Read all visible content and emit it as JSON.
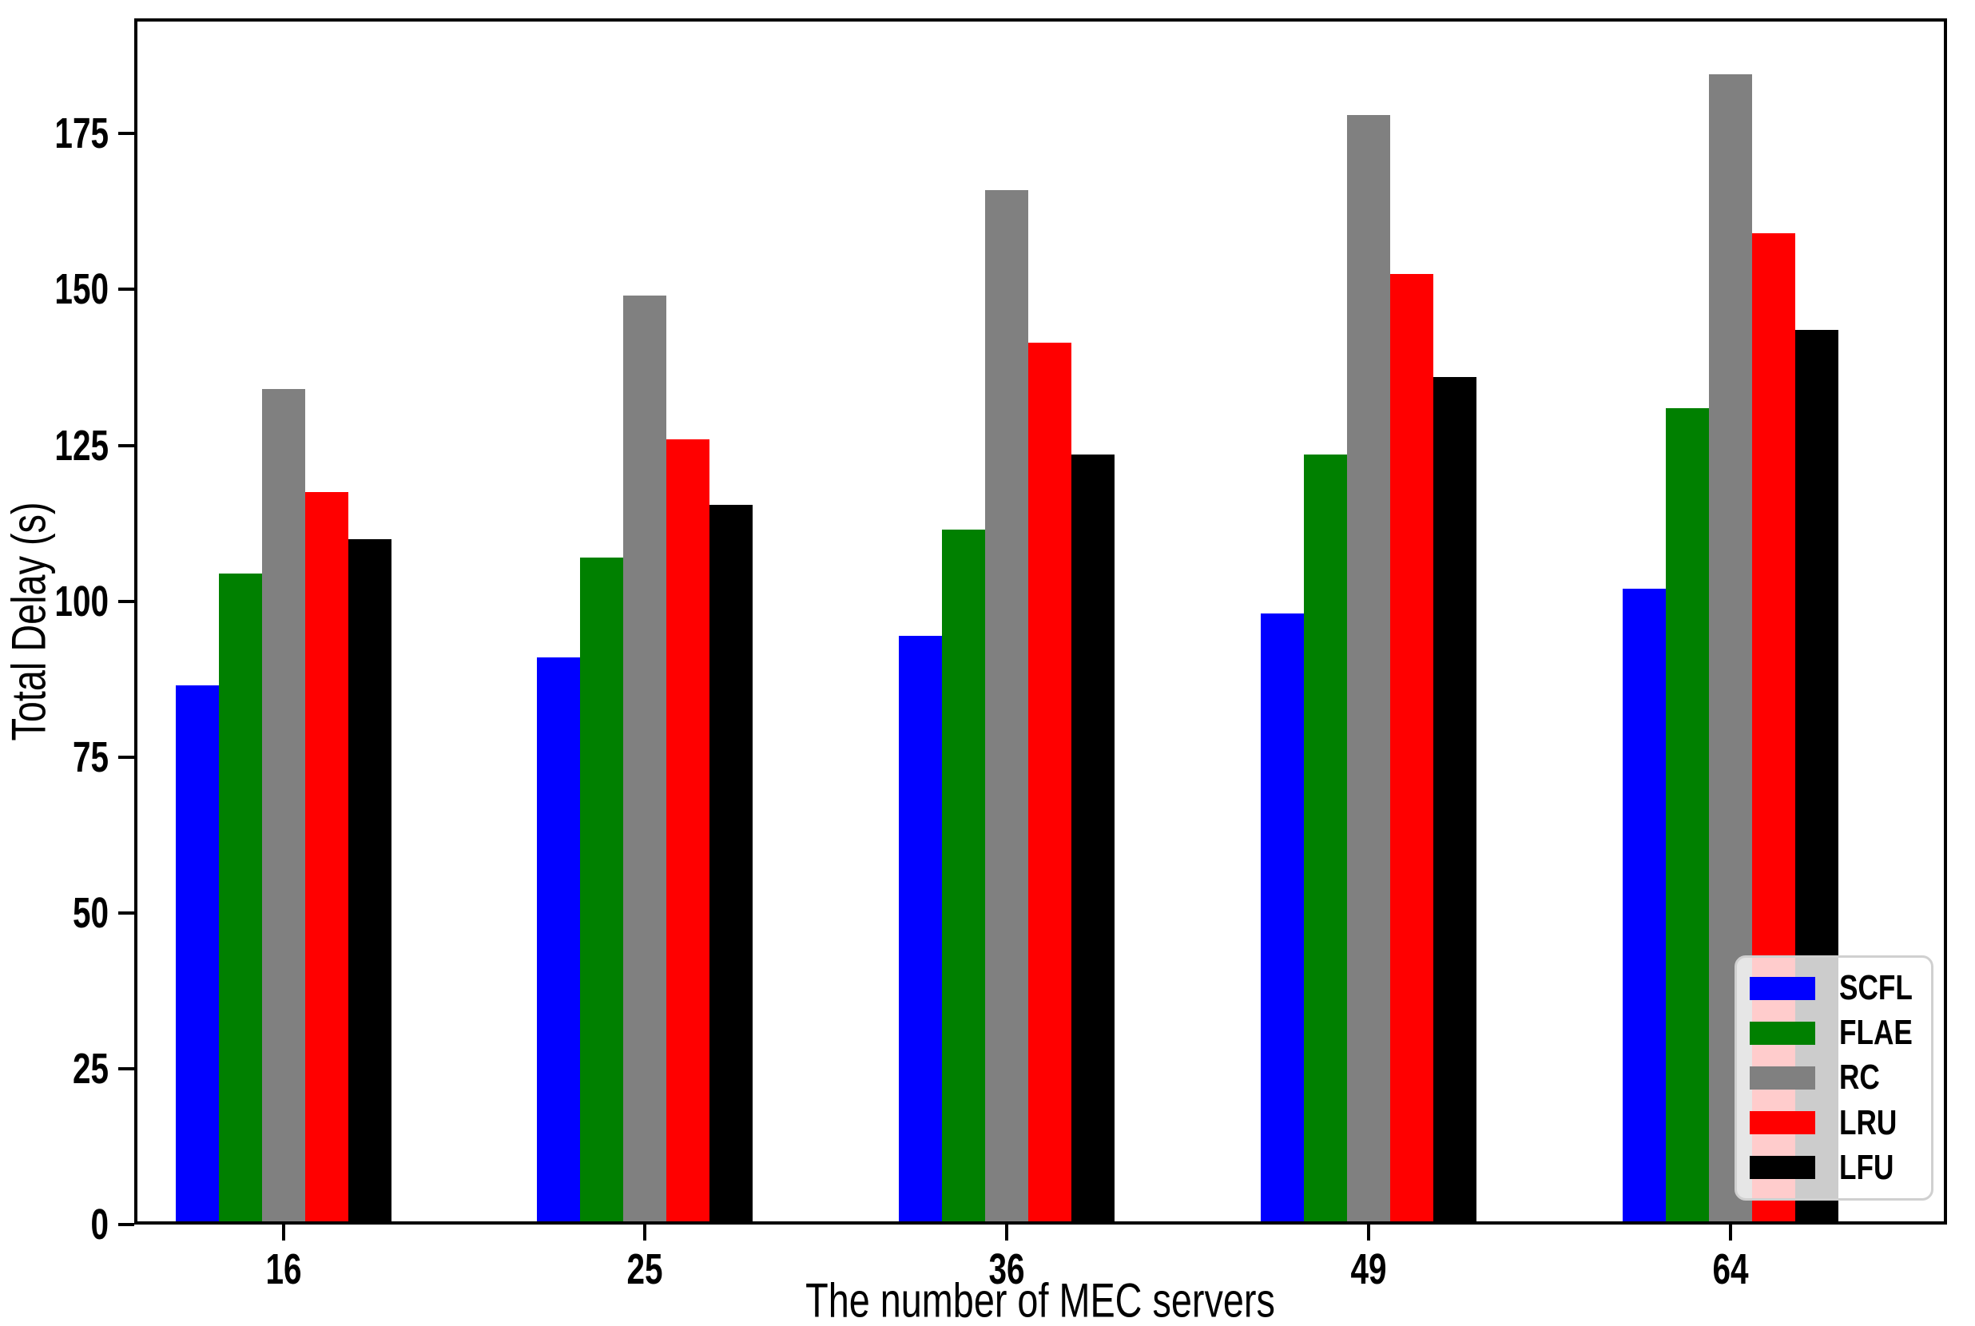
{
  "chart_data": {
    "type": "bar",
    "title": "",
    "xlabel": "The number of MEC servers",
    "ylabel": "Total Delay (s)",
    "categories": [
      "16",
      "25",
      "36",
      "49",
      "64"
    ],
    "series": [
      {
        "name": "SCFL",
        "color": "#0000ff",
        "values": [
          86.5,
          91,
          94.5,
          98,
          102
        ]
      },
      {
        "name": "FLAE",
        "color": "#008000",
        "values": [
          104.5,
          107,
          111.5,
          123.5,
          131
        ]
      },
      {
        "name": "RC",
        "color": "#808080",
        "values": [
          134,
          149,
          166,
          178,
          184.5
        ]
      },
      {
        "name": "LRU",
        "color": "#ff0000",
        "values": [
          117.5,
          126,
          141.5,
          152.5,
          159
        ]
      },
      {
        "name": "LFU",
        "color": "#000000",
        "values": [
          110,
          115.5,
          123.5,
          136,
          143.5
        ]
      }
    ],
    "yticks": [
      0,
      25,
      50,
      75,
      100,
      125,
      150,
      175
    ],
    "ylim": [
      0,
      193.5
    ],
    "grid": false,
    "legend_position": "lower right",
    "colors": {
      "axis": "#000000",
      "background": "#ffffff",
      "legend_border": "#d0d0d0"
    }
  }
}
